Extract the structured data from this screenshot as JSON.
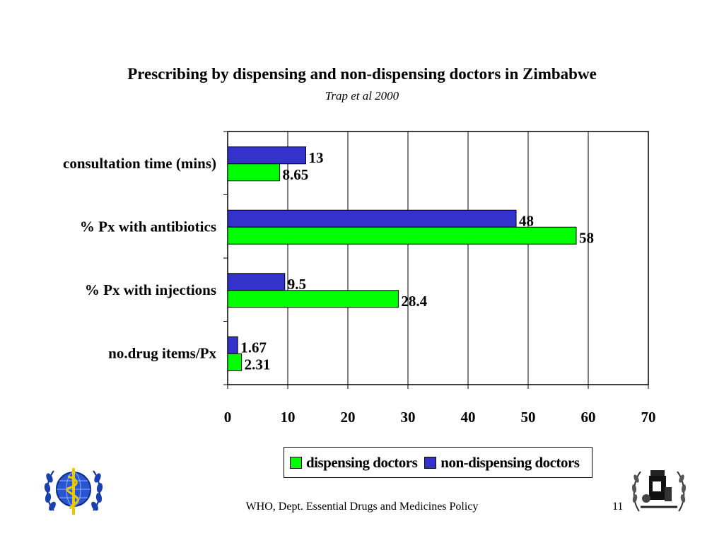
{
  "slide": {
    "footer": "WHO, Dept. Essential Drugs and Medicines Policy",
    "page_number": "11"
  },
  "colors": {
    "dispensing": "#00ff00",
    "non_dispensing": "#3333cc",
    "outline": "#000000"
  },
  "icons": [
    "who-emblem-icon",
    "medicines-emblem-icon"
  ],
  "chart_data": {
    "type": "bar",
    "orientation": "horizontal",
    "title": "Prescribing by dispensing and non-dispensing doctors in Zimbabwe",
    "subtitle": "Trap et al 2000",
    "categories": [
      "consultation time (mins)",
      "% Px with antibiotics",
      "% Px with injections",
      "no.drug items/Px"
    ],
    "series": [
      {
        "name": "non-dispensing doctors",
        "values": [
          13,
          48,
          9.5,
          1.67
        ],
        "labels": [
          "13",
          "48",
          "9.5",
          "1.67"
        ]
      },
      {
        "name": "dispensing doctors",
        "values": [
          8.65,
          58,
          28.4,
          2.31
        ],
        "labels": [
          "8.65",
          "58",
          "28.4",
          "2.31"
        ]
      }
    ],
    "xlim": [
      0,
      70
    ],
    "ticks": [
      "0",
      "10",
      "20",
      "30",
      "40",
      "50",
      "60",
      "70"
    ],
    "grid": true,
    "legend": {
      "position": "bottom",
      "entries": [
        "dispensing doctors",
        "non-dispensing doctors"
      ]
    }
  }
}
